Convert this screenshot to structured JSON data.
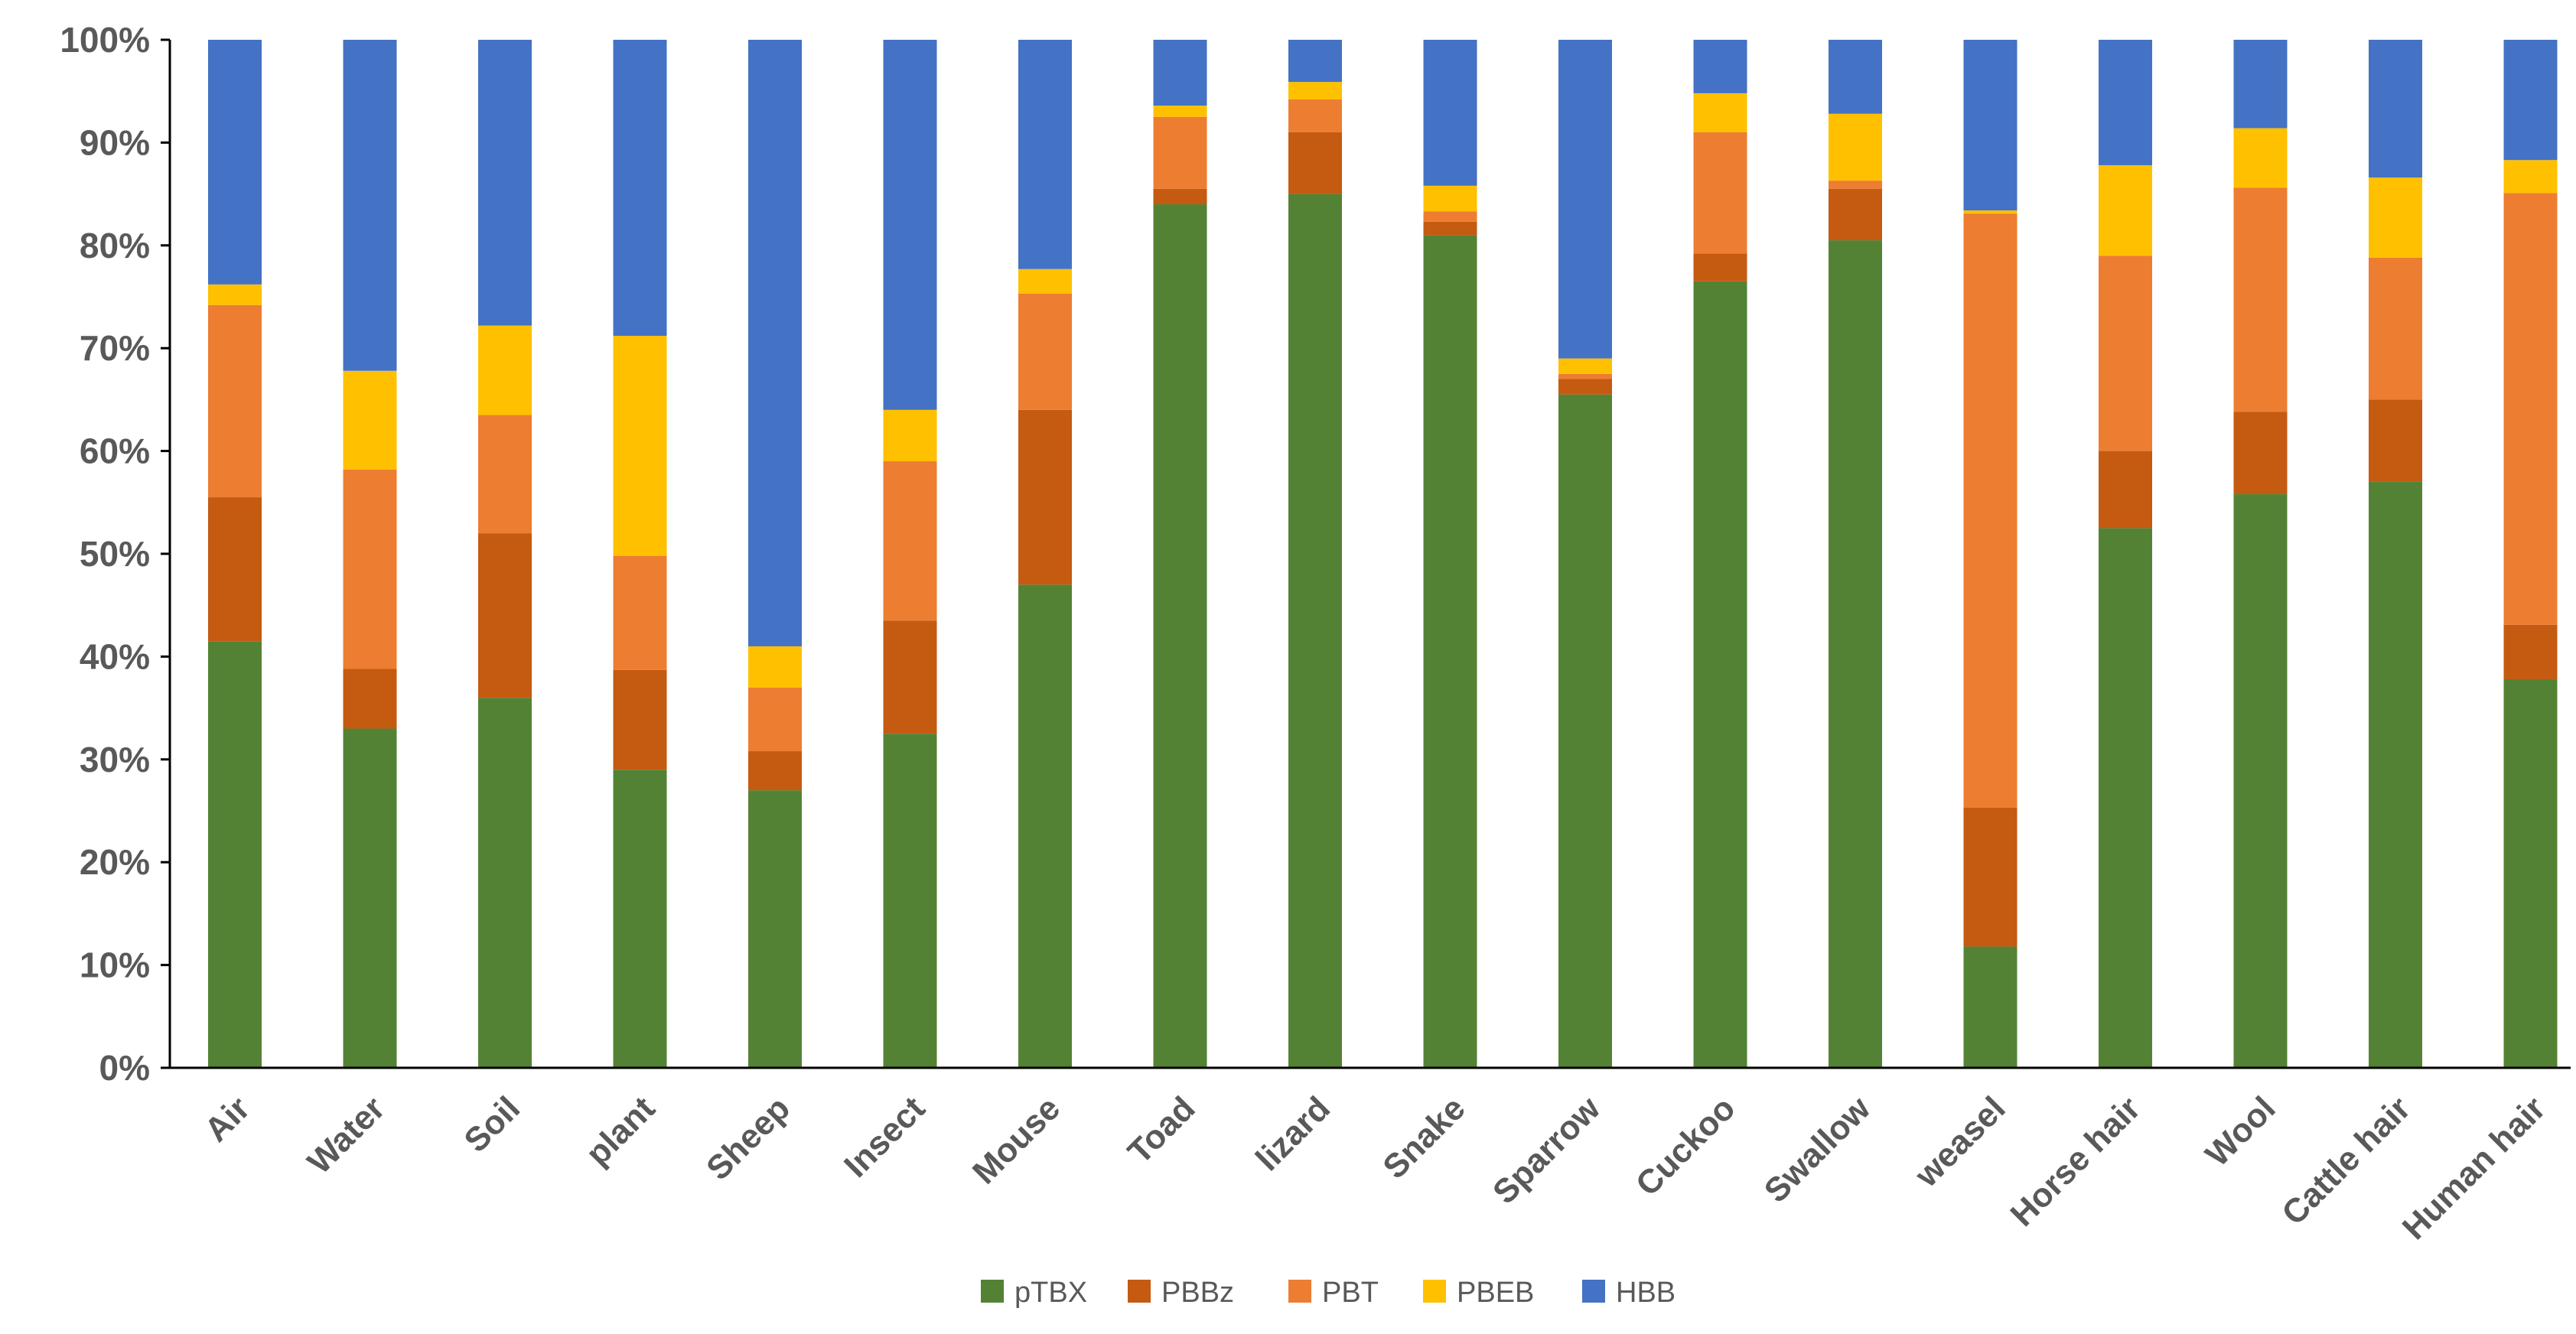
{
  "chart_data": {
    "type": "bar",
    "stacked": true,
    "normalized": true,
    "title": "",
    "xlabel": "",
    "ylabel": "",
    "ylim": [
      0,
      100
    ],
    "yticks": [
      "0%",
      "10%",
      "20%",
      "30%",
      "40%",
      "50%",
      "60%",
      "70%",
      "80%",
      "90%",
      "100%"
    ],
    "grid": false,
    "legend_position": "bottom",
    "categories": [
      "Air",
      "Water",
      "Soil",
      "plant",
      "Sheep",
      "Insect",
      "Mouse",
      "Toad",
      "lizard",
      "Snake",
      "Sparrow",
      "Cuckoo",
      "Swallow",
      "weasel",
      "Horse hair",
      "Wool",
      "Cattle hair",
      "Human hair"
    ],
    "series": [
      {
        "name": "pTBX",
        "color": "#548235",
        "values": [
          41.5,
          33,
          36,
          29,
          27,
          32.5,
          47,
          84,
          85,
          81,
          65.5,
          76.5,
          80.5,
          11.8,
          52.5,
          55.8,
          57,
          37.8
        ]
      },
      {
        "name": "PBBz",
        "color": "#C55A11",
        "values": [
          14,
          5.8,
          16,
          9.7,
          3.8,
          11,
          17,
          1.5,
          6,
          1.3,
          1.5,
          2.7,
          5,
          13.5,
          7.5,
          8,
          8,
          5.3
        ]
      },
      {
        "name": "PBT",
        "color": "#ED7D31",
        "values": [
          18.7,
          19.4,
          11.5,
          11.1,
          6.2,
          15.5,
          11.3,
          7,
          3.2,
          1,
          0.5,
          11.8,
          0.8,
          57.8,
          19,
          21.8,
          13.8,
          42
        ]
      },
      {
        "name": "PBEB",
        "color": "#FFC000",
        "values": [
          2,
          9.6,
          8.7,
          21.4,
          4,
          5,
          2.4,
          1.1,
          1.7,
          2.5,
          1.5,
          3.8,
          6.5,
          0.3,
          8.8,
          5.8,
          7.8,
          3.2
        ]
      },
      {
        "name": "HBB",
        "color": "#4472C4",
        "values": [
          23.8,
          32.2,
          27.8,
          28.8,
          59,
          36,
          22.3,
          6.4,
          4.1,
          14.2,
          31,
          5.2,
          7.2,
          16.6,
          12.2,
          8.6,
          13.4,
          11.7
        ]
      }
    ]
  }
}
